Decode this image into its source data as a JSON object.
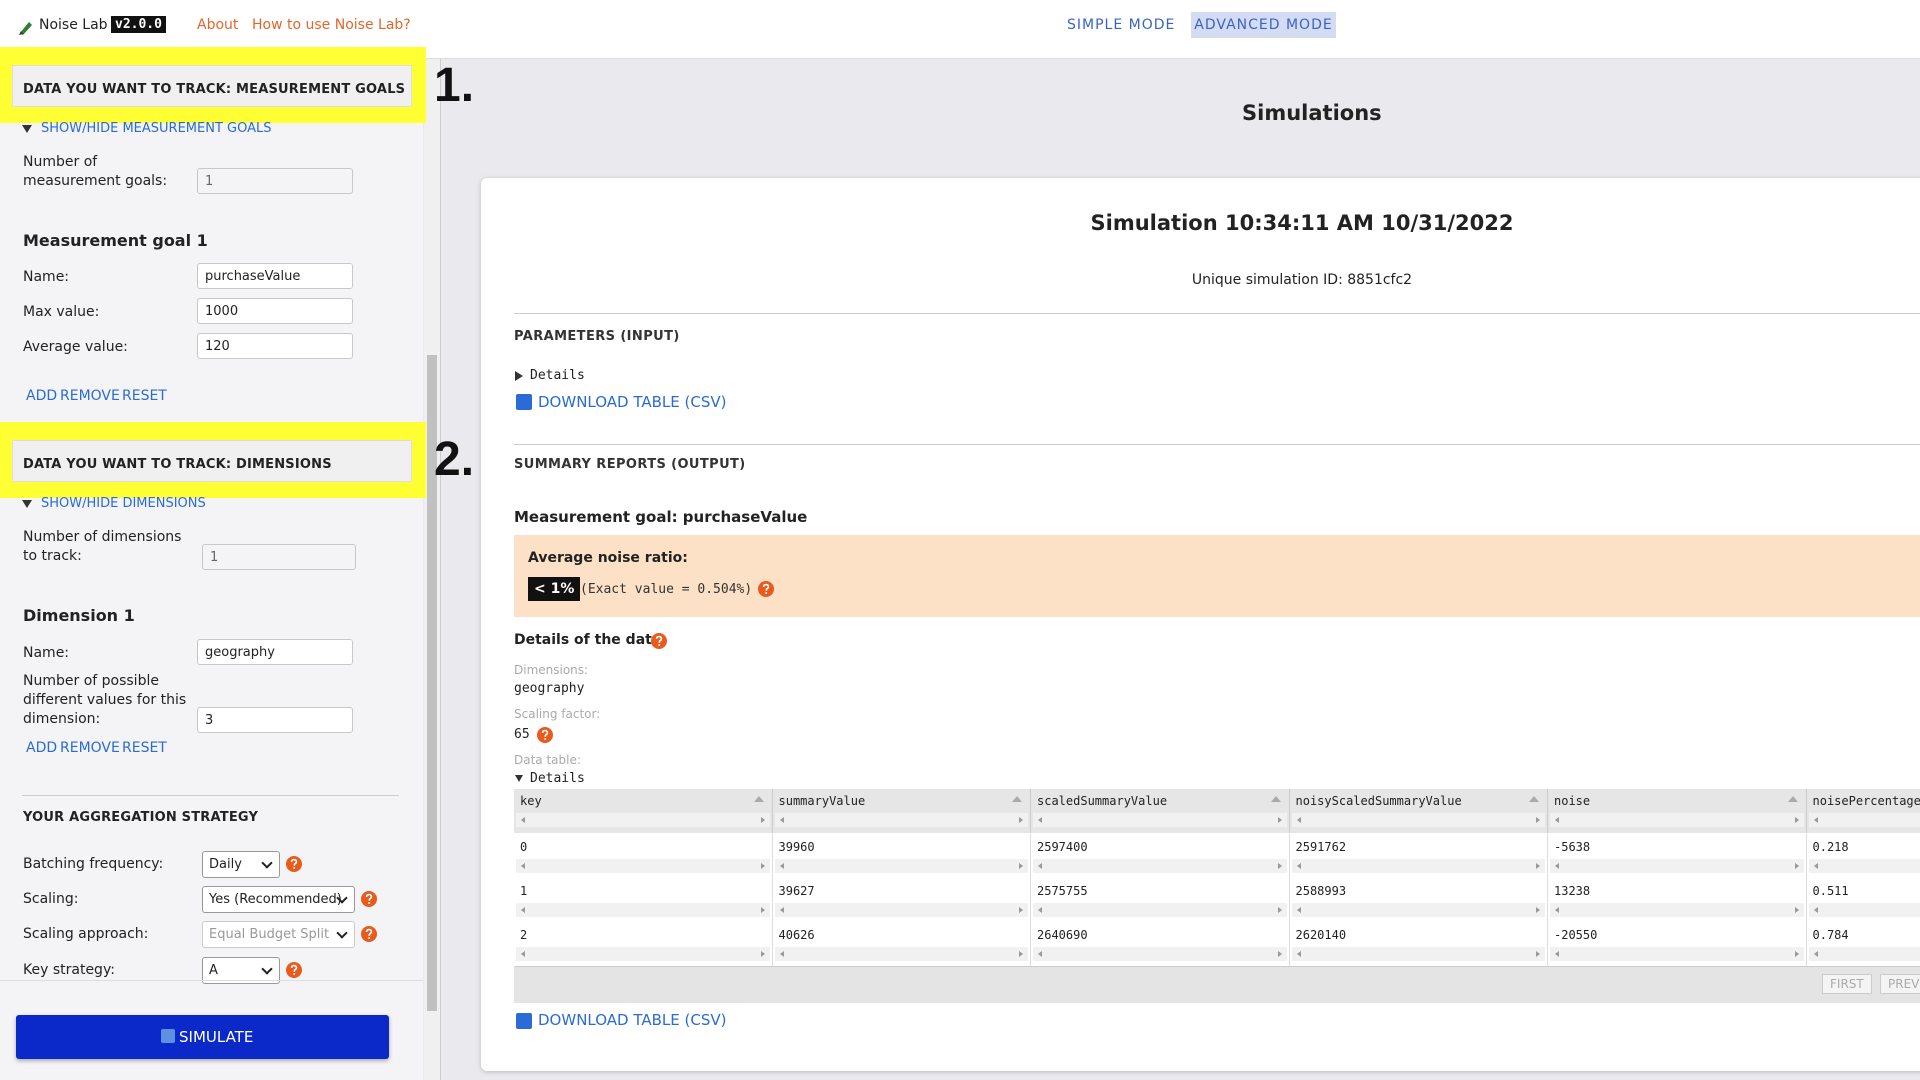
{
  "header": {
    "app_name": "Noise Lab",
    "version": "v2.0.0",
    "links": [
      "About",
      "How to use Noise Lab?"
    ],
    "modes": [
      "SIMPLE MODE",
      "ADVANCED MODE"
    ]
  },
  "sidebar": {
    "goals_section": {
      "title": "DATA YOU WANT TO TRACK: MEASUREMENT GOALS",
      "annotation": "1.",
      "toggle": "SHOW/HIDE MEASUREMENT GOALS",
      "count_label": "Number of measurement goals:",
      "count_value": "1",
      "goal_title": "Measurement goal 1",
      "fields": [
        {
          "label": "Name:",
          "value": "purchaseValue"
        },
        {
          "label": "Max value:",
          "value": "1000"
        },
        {
          "label": "Average value:",
          "value": "120"
        }
      ],
      "actions": [
        "ADD",
        "REMOVE",
        "RESET"
      ]
    },
    "dimensions_section": {
      "title": "DATA YOU WANT TO TRACK: DIMENSIONS",
      "annotation": "2.",
      "toggle": "SHOW/HIDE DIMENSIONS",
      "count_label": "Number of dimensions to track:",
      "count_value": "1",
      "dimension_title": "Dimension 1",
      "fields": [
        {
          "label": "Name:",
          "value": "geography"
        },
        {
          "label": "Number of possible different values for this dimension:",
          "value": "3"
        }
      ],
      "actions": [
        "ADD",
        "REMOVE",
        "RESET"
      ]
    },
    "aggregation": {
      "title": "YOUR AGGREGATION STRATEGY",
      "fields": [
        {
          "label": "Batching frequency:",
          "value": "Daily"
        },
        {
          "label": "Scaling:",
          "value": "Yes (Recommended)"
        },
        {
          "label": "Scaling approach:",
          "value": "Equal Budget Split"
        },
        {
          "label": "Key strategy:",
          "value": "A"
        }
      ]
    },
    "simulate_button": "SIMULATE"
  },
  "main": {
    "title": "Simulations",
    "simulation": {
      "title": "Simulation 10:34:11 AM 10/31/2022",
      "id_text": "Unique simulation ID: 8851cfc2",
      "parameters_heading": "PARAMETERS (INPUT)",
      "parameters_details": "Details",
      "download_top": "DOWNLOAD TABLE (CSV)",
      "summary_heading": "SUMMARY REPORTS (OUTPUT)",
      "goal_heading": "Measurement goal: purchaseValue",
      "noise_label": "Average noise ratio:",
      "noise_badge": "< 1%",
      "noise_exact": "(Exact value = 0.504%)",
      "details_heading": "Details of the data:",
      "dimensions_label": "Dimensions:",
      "dimensions_value": "geography",
      "scaling_label": "Scaling factor:",
      "scaling_value": "65",
      "data_table_label": "Data table:",
      "data_table_details": "Details",
      "table": {
        "columns": [
          "key",
          "summaryValue",
          "scaledSummaryValue",
          "noisyScaledSummaryValue",
          "noise",
          "noisePercentage"
        ],
        "rows": [
          [
            "0",
            "39960",
            "2597400",
            "2591762",
            "-5638",
            "0.218"
          ],
          [
            "1",
            "39627",
            "2575755",
            "2588993",
            "13238",
            "0.511"
          ],
          [
            "2",
            "40626",
            "2640690",
            "2620140",
            "-20550",
            "0.784"
          ]
        ]
      },
      "pagination": [
        "FIRST",
        "PREV"
      ],
      "download_bottom": "DOWNLOAD TABLE (CSV)"
    }
  }
}
